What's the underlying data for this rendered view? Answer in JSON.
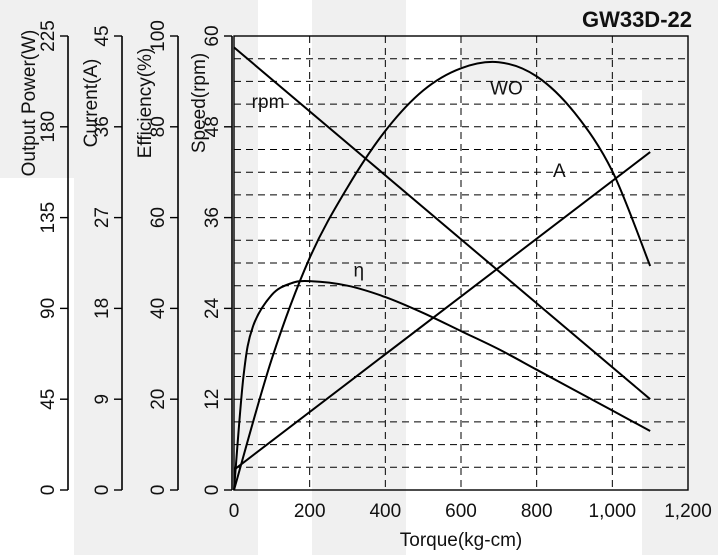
{
  "chart_data": {
    "type": "line",
    "title": "GW33D-22",
    "xlabel": "Torque(kg-cm)",
    "x_ticks": [
      "0",
      "200",
      "400",
      "600",
      "800",
      "1,000",
      "1,200"
    ],
    "xlim": [
      0,
      1200
    ],
    "y_axes": [
      {
        "label": "Output Power(W)",
        "ylim": [
          0,
          225
        ],
        "ticks": [
          "0",
          "45",
          "90",
          "135",
          "180",
          "225"
        ]
      },
      {
        "label": "Current(A)",
        "ylim": [
          0,
          45
        ],
        "ticks": [
          "0",
          "9",
          "18",
          "27",
          "36",
          "45"
        ]
      },
      {
        "label": "Efficiency(%)",
        "ylim": [
          0,
          100
        ],
        "ticks": [
          "0",
          "20",
          "40",
          "60",
          "80",
          "100"
        ]
      },
      {
        "label": "Speed(rpm)",
        "ylim": [
          0,
          60
        ],
        "ticks": [
          "0",
          "12",
          "24",
          "36",
          "48",
          "60"
        ]
      }
    ],
    "grid": true,
    "series": [
      {
        "name": "rpm",
        "axis": 3,
        "points": [
          [
            0,
            58.5
          ],
          [
            1100,
            12
          ]
        ]
      },
      {
        "name": "A",
        "axis": 1,
        "points": [
          [
            0,
            2
          ],
          [
            1100,
            33.5
          ]
        ]
      },
      {
        "name": "WO",
        "axis": 0,
        "points": [
          [
            0,
            0
          ],
          [
            100,
            65
          ],
          [
            200,
            115
          ],
          [
            300,
            150
          ],
          [
            400,
            178
          ],
          [
            500,
            198
          ],
          [
            600,
            209
          ],
          [
            700,
            212
          ],
          [
            800,
            205
          ],
          [
            900,
            187
          ],
          [
            1000,
            158
          ],
          [
            1100,
            111
          ]
        ]
      },
      {
        "name": "η",
        "axis": 2,
        "points": [
          [
            0,
            0
          ],
          [
            25,
            25
          ],
          [
            50,
            36
          ],
          [
            100,
            43
          ],
          [
            150,
            45.5
          ],
          [
            200,
            46
          ],
          [
            300,
            45
          ],
          [
            400,
            42.5
          ],
          [
            500,
            39
          ],
          [
            600,
            35
          ],
          [
            700,
            31
          ],
          [
            800,
            26.5
          ],
          [
            900,
            22
          ],
          [
            1000,
            17.5
          ],
          [
            1100,
            13
          ]
        ]
      }
    ],
    "annotations": [
      {
        "text": "rpm",
        "series": "rpm",
        "x": 90,
        "y_axis": 3,
        "y": 50.5
      },
      {
        "text": "WO",
        "series": "WO",
        "x": 720,
        "y_axis": 0,
        "y": 196
      },
      {
        "text": "η",
        "series": "η",
        "x": 330,
        "y_axis": 2,
        "y": 47
      },
      {
        "text": "A",
        "series": "A",
        "x": 860,
        "y_axis": 1,
        "y": 31
      }
    ]
  }
}
